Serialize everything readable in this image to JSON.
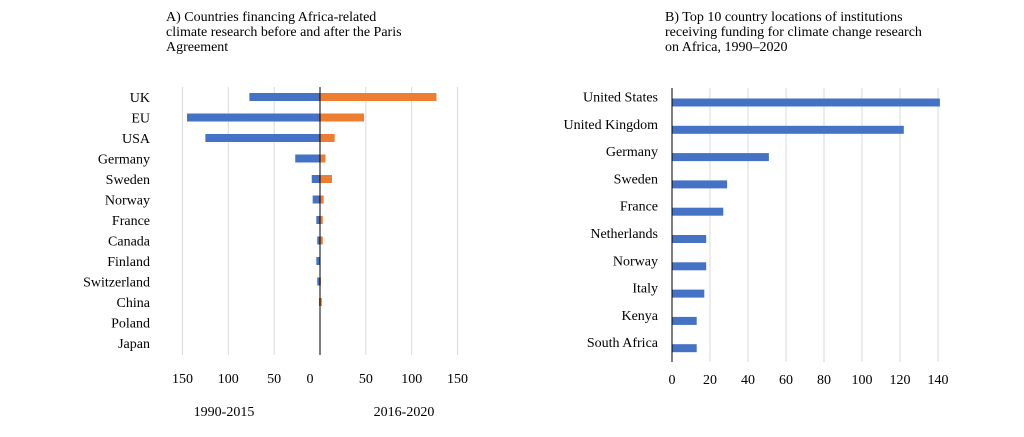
{
  "chart_data": [
    {
      "type": "bar",
      "orientation": "horizontal",
      "title": "A) Countries  financing Africa-related\nclimate research before and after the Paris\nAgreement",
      "categories": [
        "UK",
        "EU",
        "USA",
        "Germany",
        "Sweden",
        "Norway",
        "France",
        "Canada",
        "Finland",
        "Switzerland",
        "China",
        "Poland",
        "Japan"
      ],
      "series": [
        {
          "name": "1990-2015",
          "color": "#4472c4",
          "values": [
            77,
            145,
            125,
            27,
            9,
            8,
            4,
            3,
            4,
            3,
            1,
            0,
            0
          ]
        },
        {
          "name": "2016-2020",
          "color": "#ed7d31",
          "values": [
            127,
            48,
            16,
            6,
            13,
            4,
            3,
            3,
            0,
            1,
            2,
            0,
            0
          ]
        }
      ],
      "xticks": [
        "150",
        "100",
        "50",
        "0",
        "50",
        "100",
        "150"
      ],
      "xlim": [
        -150,
        150
      ],
      "group_labels": [
        "1990-2015",
        "2016-2020"
      ],
      "grid": true
    },
    {
      "type": "bar",
      "orientation": "horizontal",
      "title": "B) Top 10 country locations of institutions\nreceiving funding for climate change research\non Africa, 1990–2020",
      "categories": [
        "United States",
        "United Kingdom",
        "Germany",
        "Sweden",
        "France",
        "Netherlands",
        "Norway",
        "Italy",
        "Kenya",
        "South Africa"
      ],
      "series": [
        {
          "color": "#4472c4",
          "values": [
            141,
            122,
            51,
            29,
            27,
            18,
            18,
            17,
            13,
            13
          ]
        }
      ],
      "xticks": [
        "0",
        "20",
        "40",
        "60",
        "80",
        "100",
        "120",
        "140"
      ],
      "xlim": [
        0,
        150
      ],
      "grid": true
    }
  ]
}
